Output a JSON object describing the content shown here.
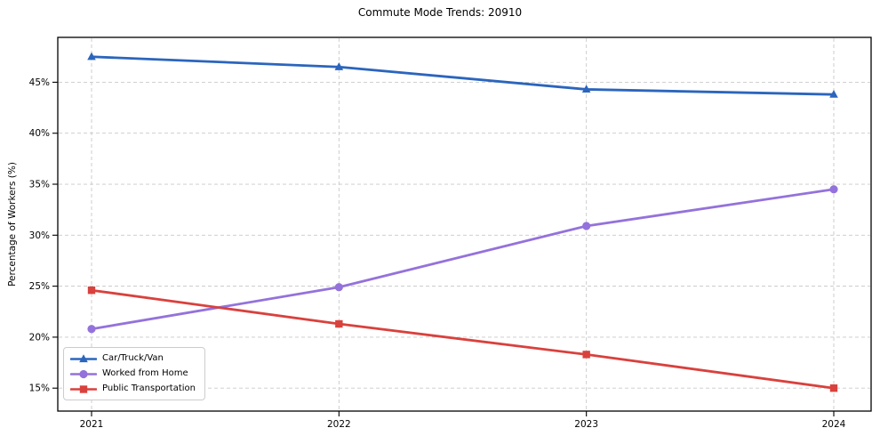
{
  "title": "Commute Mode Trends: 20910",
  "chart_data": {
    "type": "line",
    "title": "Commute Mode Trends: 20910",
    "xlabel": "",
    "ylabel": "Percentage of Workers (%)",
    "categories": [
      "2021",
      "2022",
      "2023",
      "2024"
    ],
    "series": [
      {
        "name": "Car/Truck/Van",
        "marker": "triangle",
        "color": "#2b65bd",
        "values": [
          47.5,
          46.5,
          44.3,
          43.8
        ]
      },
      {
        "name": "Worked from Home",
        "marker": "circle",
        "color": "#9472db",
        "values": [
          20.8,
          24.9,
          30.9,
          34.5
        ]
      },
      {
        "name": "Public Transportation",
        "marker": "square",
        "color": "#d9413d",
        "values": [
          24.6,
          21.3,
          18.3,
          15.0
        ]
      }
    ],
    "y_ticks": [
      15,
      20,
      25,
      30,
      35,
      40,
      45
    ],
    "y_tick_labels": [
      "15%",
      "20%",
      "25%",
      "30%",
      "35%",
      "40%",
      "45%"
    ],
    "x_tick_labels": [
      "2021",
      "2022",
      "2023",
      "2024"
    ],
    "ylim": [
      12.75,
      49.4
    ],
    "grid": true,
    "grid_style": "dashed",
    "legend_position": "lower left",
    "colors": {
      "grid": "#c9c9c9",
      "spine": "#000000",
      "text": "#000000",
      "legend_border": "#cccccc",
      "background": "#ffffff"
    }
  }
}
